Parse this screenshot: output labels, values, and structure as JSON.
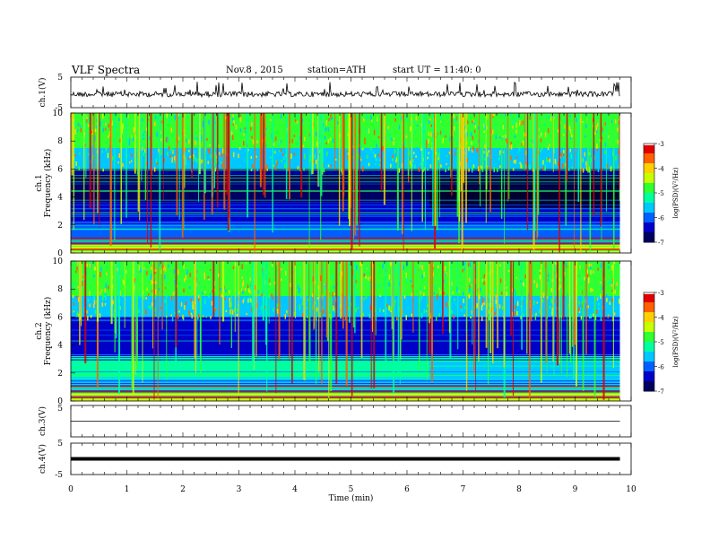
{
  "header": {
    "title": "VLF  Spectra",
    "date": "Nov.8  , 2015",
    "station": "station=ATH",
    "start": "start  UT  =   11:40: 0"
  },
  "colors": {
    "colormap": [
      "#000060",
      "#0000c8",
      "#0060ff",
      "#00c8ff",
      "#00ffa0",
      "#30ff30",
      "#c8ff00",
      "#ffd000",
      "#ff6000",
      "#e00000",
      "#ffffff"
    ]
  },
  "chart_data": [
    {
      "type": "line",
      "panel": "ch1-waveform",
      "ylabel": "ch.1(V)",
      "ylim": [
        -5,
        5
      ],
      "yticks": [
        "5",
        "-5"
      ],
      "xlim": [
        0,
        10
      ],
      "baseline": 0,
      "description_values": {
        "approx_level_v": 0.0,
        "spike_max_v": 4.5
      }
    },
    {
      "type": "heatmap",
      "panel": "ch1-spectrogram",
      "ylabel": "ch.1\nFrequency  (kHz)",
      "ylabel_lines": [
        "ch.1",
        "Frequency  (kHz)"
      ],
      "ylim": [
        0,
        10
      ],
      "yticks": [
        "0",
        "2",
        "4",
        "6",
        "8",
        "10"
      ],
      "xlim": [
        0,
        9.8
      ],
      "colorbar": {
        "label": "log(PSD)(V²/Hz)",
        "range": [
          -7,
          -3
        ],
        "ticks": [
          "-3",
          "-4",
          "-5",
          "-6",
          "-7"
        ]
      }
    },
    {
      "type": "heatmap",
      "panel": "ch2-spectrogram",
      "ylabel_lines": [
        "ch.2",
        "Frequency  (kHz)"
      ],
      "ylim": [
        0,
        10
      ],
      "yticks": [
        "0",
        "2",
        "4",
        "6",
        "8",
        "10"
      ],
      "xlim": [
        0,
        9.8
      ],
      "colorbar": {
        "label": "log(PSD)(V²/Hz)",
        "range": [
          -7,
          -3
        ],
        "ticks": [
          "-3",
          "-4",
          "-5",
          "-6",
          "-7"
        ]
      }
    },
    {
      "type": "line",
      "panel": "ch3-waveform",
      "ylabel": "ch.3(V)",
      "ylim": [
        -5,
        5
      ],
      "yticks": [
        "5"
      ],
      "xlim": [
        0,
        10
      ],
      "baseline": 0
    },
    {
      "type": "line",
      "panel": "ch4-waveform",
      "ylabel": "ch.4(V)",
      "ylim": [
        -5,
        5
      ],
      "yticks": [
        "5",
        "-5"
      ],
      "xlim": [
        0,
        10
      ],
      "baseline": 0
    }
  ],
  "xaxis": {
    "label": "Time  (min)",
    "ticks": [
      "0",
      "1",
      "2",
      "3",
      "4",
      "5",
      "6",
      "7",
      "8",
      "9",
      "10"
    ],
    "range": [
      0,
      10
    ]
  }
}
